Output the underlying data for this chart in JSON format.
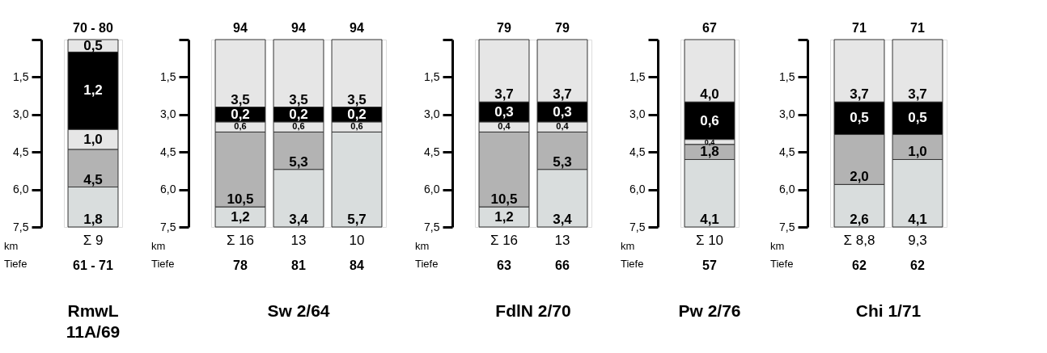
{
  "chart_data": [
    {
      "type": "bar",
      "title": "RmwL 11A/69",
      "categories": [
        "Σ 9"
      ],
      "stacked": true,
      "ylim": [
        7.5,
        0
      ],
      "yticks": [
        {
          "value": 0,
          "label": null
        },
        {
          "value": 1.5,
          "label": "1,5"
        },
        {
          "value": 3.0,
          "label": "3,0"
        },
        {
          "value": 4.5,
          "label": "4,5"
        },
        {
          "value": 6.0,
          "label": "6,0"
        },
        {
          "value": 7.5,
          "label": "7,5"
        }
      ],
      "grid": false,
      "legend": false,
      "series": [
        {
          "color": "#e6e6e6",
          "values": [
            0.5
          ]
        },
        {
          "color": "#000000",
          "values": [
            3.1
          ]
        },
        {
          "color": "#e6e6e6",
          "values": [
            0.8
          ]
        },
        {
          "color": "#b3b3b3",
          "values": [
            1.5
          ]
        },
        {
          "color": "#d9dddd",
          "values": [
            1.6
          ]
        }
      ],
      "annotations": [
        "km",
        "Tiefe",
        "70 - 80",
        "61 - 71",
        "0,5",
        "1,2",
        "1,0",
        "4,5",
        "1,8"
      ]
    },
    {
      "type": "bar",
      "title": "Sw 2/64",
      "categories": [
        "Σ 16",
        "13",
        "10"
      ],
      "stacked": true,
      "ylim": [
        7.5,
        0
      ],
      "yticks": [
        {
          "value": 0,
          "label": null
        },
        {
          "value": 1.5,
          "label": "1,5"
        },
        {
          "value": 3.0,
          "label": "3,0"
        },
        {
          "value": 4.5,
          "label": "4,5"
        },
        {
          "value": 6.0,
          "label": "6,0"
        },
        {
          "value": 7.5,
          "label": "7,5"
        }
      ],
      "grid": false,
      "legend": false,
      "series": [
        {
          "color": "#e6e6e6",
          "values": [
            2.7,
            2.7,
            2.7
          ]
        },
        {
          "color": "#000000",
          "values": [
            0.6,
            0.6,
            0.6
          ]
        },
        {
          "color": "#e6e6e6",
          "values": [
            0.4,
            0.4,
            0.4
          ]
        },
        {
          "color": "#b3b3b3",
          "values": [
            3.0,
            1.5,
            null
          ]
        },
        {
          "color": "#d9dddd",
          "values": [
            0.8,
            2.3,
            3.8
          ]
        }
      ],
      "annotations": [
        "km",
        "Tiefe",
        "94",
        "94",
        "94",
        "78",
        "81",
        "84",
        "3,5",
        "0,2",
        "0,6",
        "10,5",
        "1,2",
        "3,5",
        "0,2",
        "0,6",
        "5,3",
        "3,4",
        "3,5",
        "0,2",
        "0,6",
        "5,7"
      ]
    },
    {
      "type": "bar",
      "title": "FdlN 2/70",
      "categories": [
        "Σ 16",
        "13"
      ],
      "stacked": true,
      "ylim": [
        7.5,
        0
      ],
      "yticks": [
        {
          "value": 0,
          "label": null
        },
        {
          "value": 1.5,
          "label": "1,5"
        },
        {
          "value": 3.0,
          "label": "3,0"
        },
        {
          "value": 4.5,
          "label": "4,5"
        },
        {
          "value": 6.0,
          "label": "6,0"
        },
        {
          "value": 7.5,
          "label": "7,5"
        }
      ],
      "grid": false,
      "legend": false,
      "series": [
        {
          "color": "#e6e6e6",
          "values": [
            2.5,
            2.5
          ]
        },
        {
          "color": "#000000",
          "values": [
            0.8,
            0.8
          ]
        },
        {
          "color": "#e6e6e6",
          "values": [
            0.4,
            0.4
          ]
        },
        {
          "color": "#b3b3b3",
          "values": [
            3.0,
            1.5
          ]
        },
        {
          "color": "#d9dddd",
          "values": [
            0.8,
            2.3
          ]
        }
      ],
      "annotations": [
        "km",
        "Tiefe",
        "79",
        "79",
        "63",
        "66",
        "3,7",
        "0,3",
        "0,4",
        "10,5",
        "1,2",
        "3,7",
        "0,3",
        "0,4",
        "5,3",
        "3,4"
      ]
    },
    {
      "type": "bar",
      "title": "Pw 2/76",
      "categories": [
        "Σ 10"
      ],
      "stacked": true,
      "ylim": [
        7.5,
        0
      ],
      "yticks": [
        {
          "value": 0,
          "label": null
        },
        {
          "value": 1.5,
          "label": "1,5"
        },
        {
          "value": 3.0,
          "label": "3,0"
        },
        {
          "value": 4.5,
          "label": "4,5"
        },
        {
          "value": 6.0,
          "label": "6,0"
        },
        {
          "value": 7.5,
          "label": "7,5"
        }
      ],
      "grid": false,
      "legend": false,
      "series": [
        {
          "color": "#e6e6e6",
          "values": [
            2.5
          ]
        },
        {
          "color": "#000000",
          "values": [
            1.5
          ]
        },
        {
          "color": "#e6e6e6",
          "values": [
            0.2
          ]
        },
        {
          "color": "#b3b3b3",
          "values": [
            0.6
          ]
        },
        {
          "color": "#d9dddd",
          "values": [
            2.7
          ]
        }
      ],
      "annotations": [
        "km",
        "Tiefe",
        "67",
        "57",
        "4,0",
        "0,6",
        "0,4",
        "1,8",
        "4,1"
      ]
    },
    {
      "type": "bar",
      "title": "Chi 1/71",
      "categories": [
        "Σ 8,8",
        "9,3"
      ],
      "stacked": true,
      "ylim": [
        7.5,
        0
      ],
      "yticks": [
        {
          "value": 0,
          "label": null
        },
        {
          "value": 1.5,
          "label": "1,5"
        },
        {
          "value": 3.0,
          "label": "3,0"
        },
        {
          "value": 4.5,
          "label": "4,5"
        },
        {
          "value": 6.0,
          "label": "6,0"
        },
        {
          "value": 7.5,
          "label": "7,5"
        }
      ],
      "grid": false,
      "legend": false,
      "series": [
        {
          "color": "#e6e6e6",
          "values": [
            2.5,
            2.5
          ]
        },
        {
          "color": "#000000",
          "values": [
            1.3,
            1.3
          ]
        },
        {
          "color": "#b3b3b3",
          "values": [
            2.0,
            1.0
          ]
        },
        {
          "color": "#d9dddd",
          "values": [
            1.7,
            2.7
          ]
        }
      ],
      "annotations": [
        "km",
        "Tiefe",
        "71",
        "71",
        "62",
        "62",
        "3,7",
        "0,5",
        "2,0",
        "2,6",
        "3,7",
        "0,5",
        "1,0",
        "4,1"
      ]
    }
  ]
}
